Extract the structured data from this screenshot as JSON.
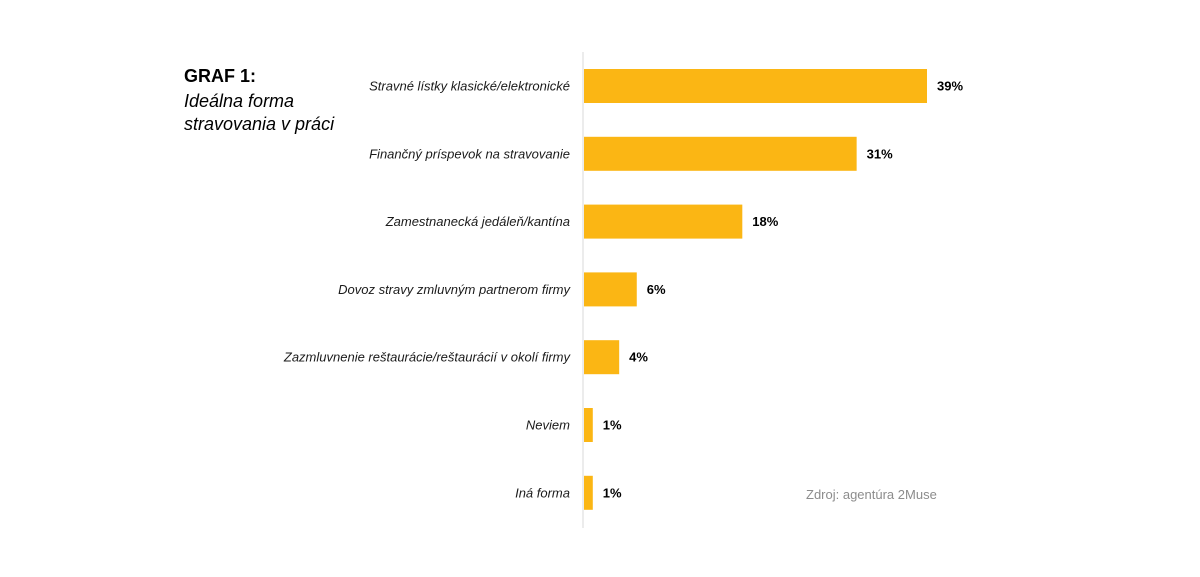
{
  "chart_data": {
    "type": "bar",
    "orientation": "horizontal",
    "title": "GRAF 1:",
    "subtitle": "Ideálna forma stravovania v práci",
    "categories": [
      "Stravné lístky klasické/elektronické",
      "Finančný príspevok na stravovanie",
      "Zamestnanecká jedáleň/kantína",
      "Dovoz stravy zmluvným partnerom firmy",
      "Zazmluvnenie reštaurácie/reštaurácií v okolí firmy",
      "Neviem",
      "Iná forma"
    ],
    "values": [
      39,
      31,
      18,
      6,
      4,
      1,
      1
    ],
    "value_labels": [
      "39%",
      "31%",
      "18%",
      "6%",
      "4%",
      "1%",
      "1%"
    ],
    "unit": "%",
    "xlim": [
      0,
      39
    ],
    "grid": false,
    "legend": "none",
    "bar_color": "#FBB614",
    "axis_color": "#d9d9d9",
    "source": "Zdroj: agentúra 2Muse"
  }
}
